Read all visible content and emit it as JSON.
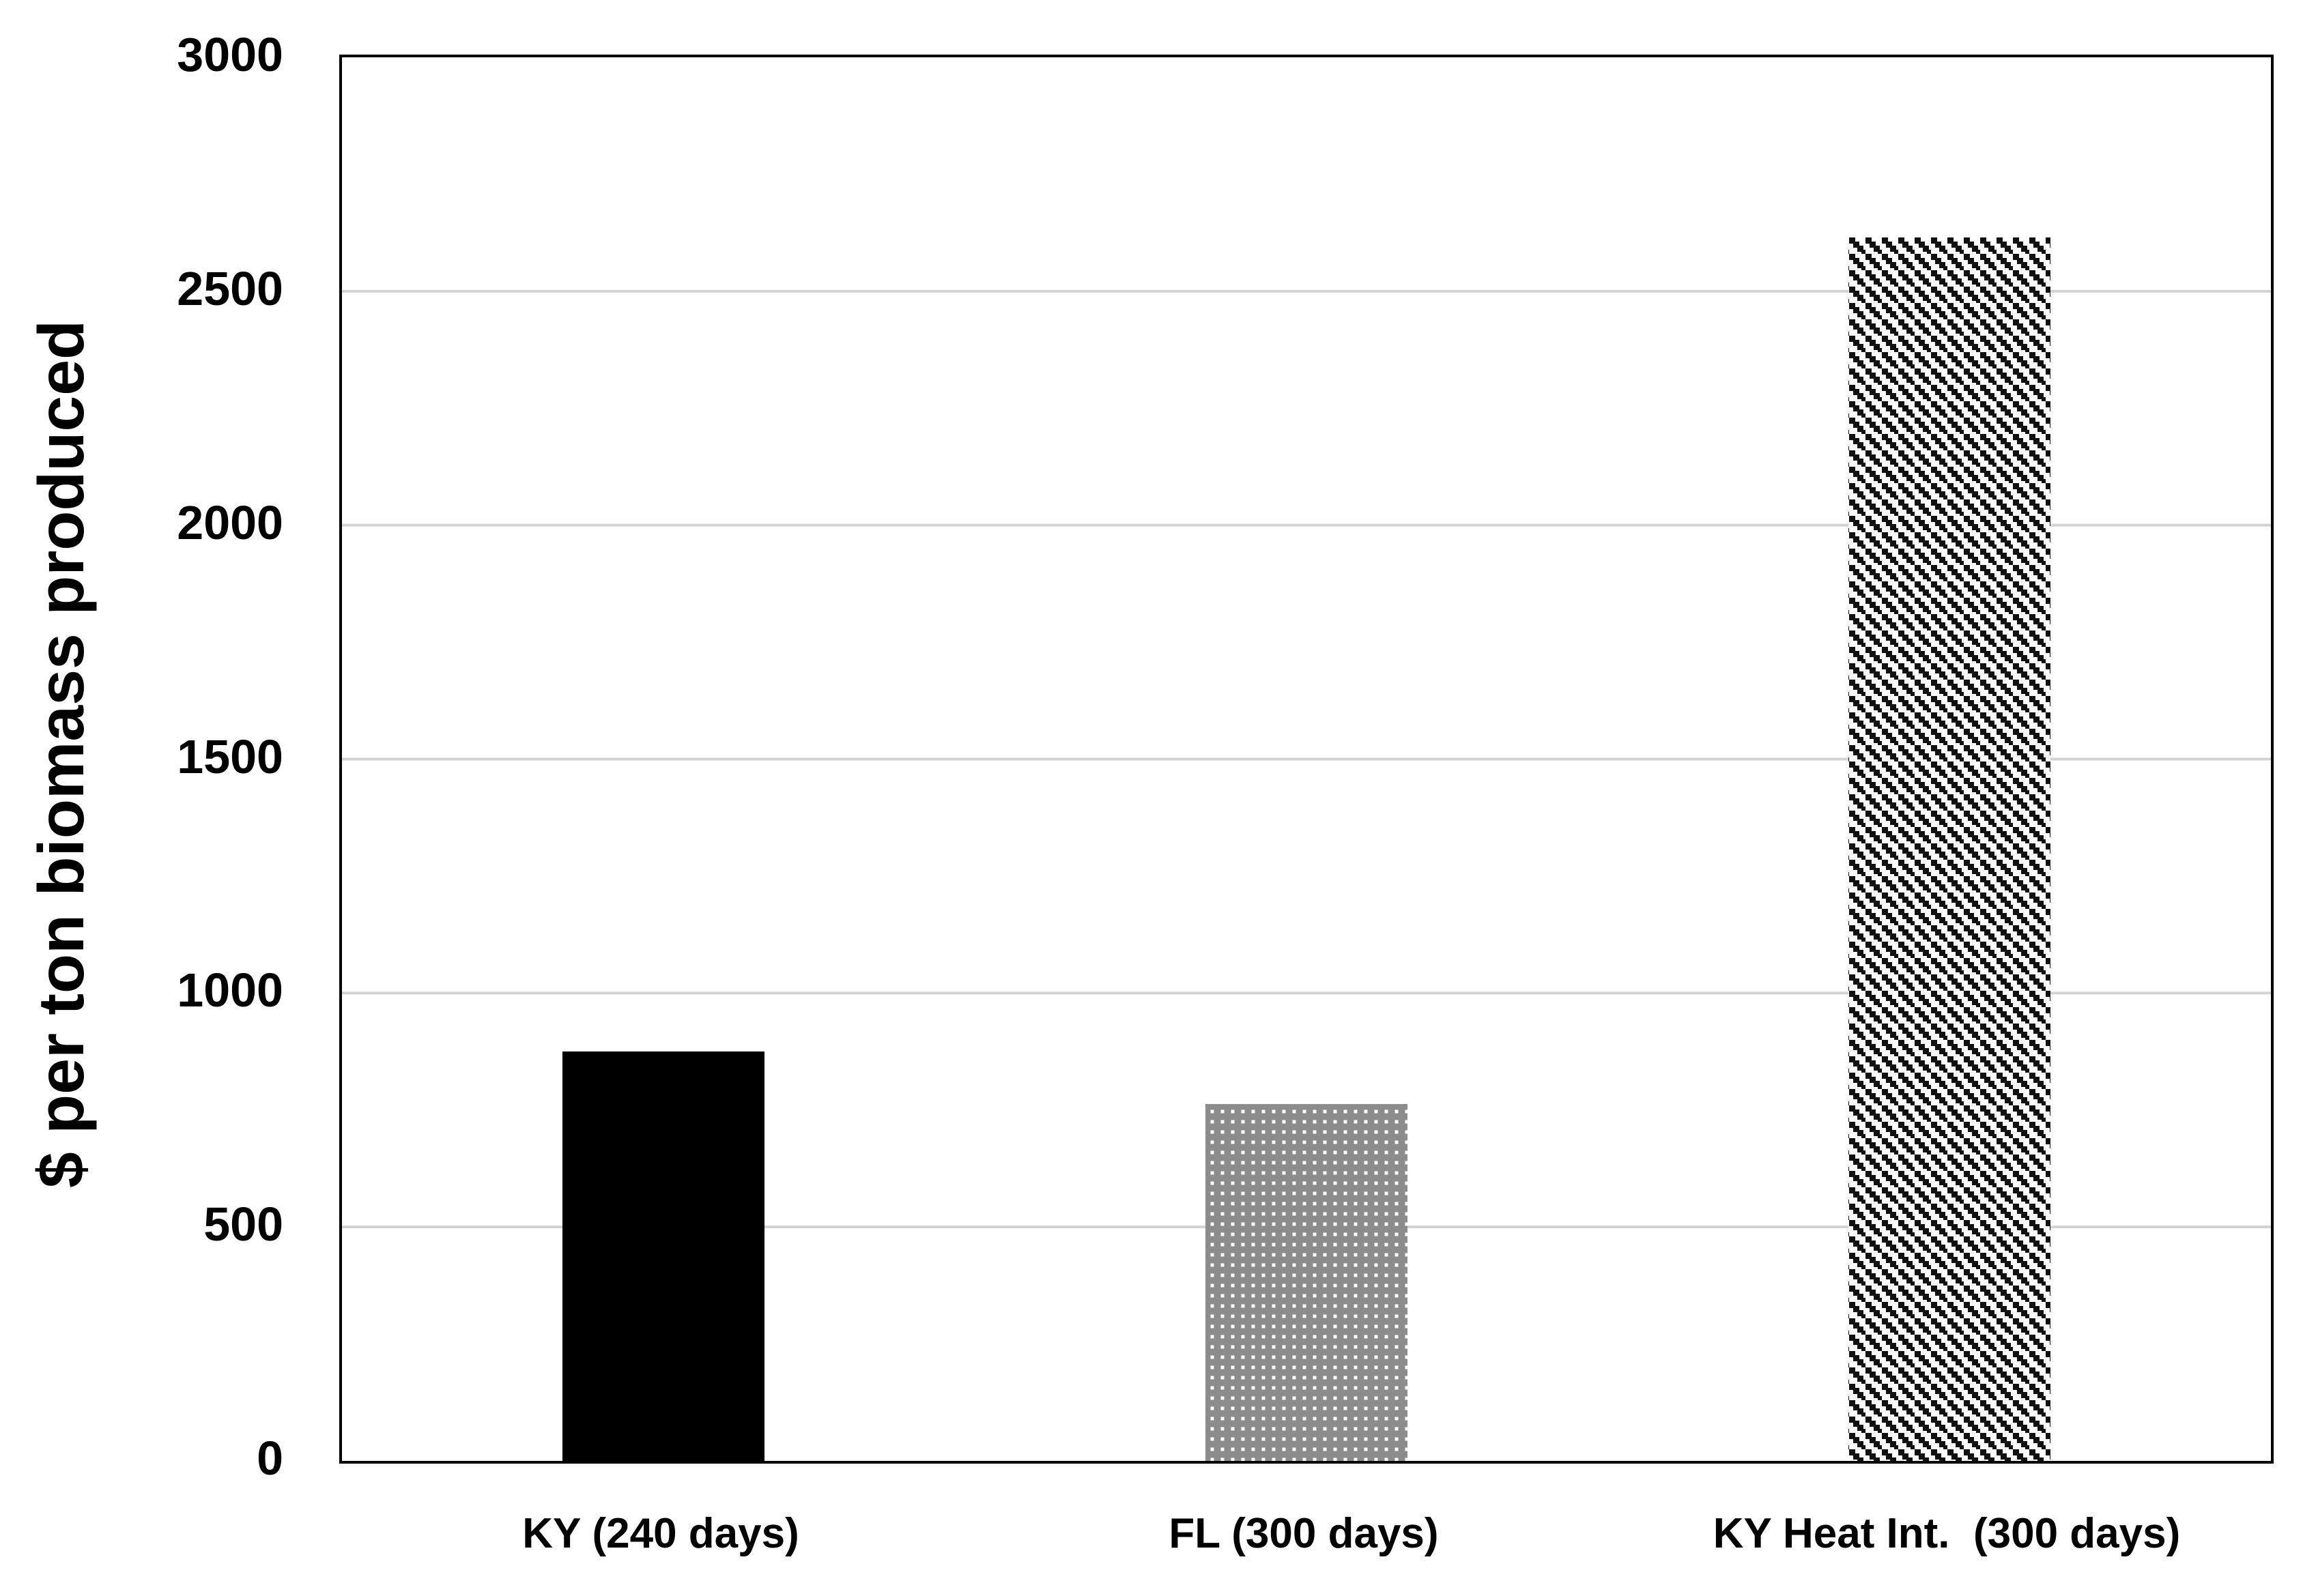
{
  "chart_data": {
    "type": "bar",
    "title": "",
    "xlabel": "",
    "ylabel": "$ per ton biomass produced",
    "categories": [
      "KY (240 days)",
      "FL (300 days)",
      "KY Heat Int.  (300 days)"
    ],
    "values": [
      875,
      763,
      2615
    ],
    "ylim": [
      0,
      3000
    ],
    "yticks": [
      0,
      500,
      1000,
      1500,
      2000,
      2500,
      3000
    ],
    "grid": "horizontal",
    "legend_position": "none",
    "bar_patterns": [
      "solid-black",
      "gray-dotted-crosshatch",
      "black-diagonal-stripes"
    ],
    "colors": {
      "solid_bar": "#000000",
      "crosshatch_gray": "#8c8c8c",
      "diagonal_black": "#111111",
      "gridline": "#d2d2d2",
      "axis_border": "#000000",
      "background": "#ffffff",
      "text": "#000000"
    }
  }
}
